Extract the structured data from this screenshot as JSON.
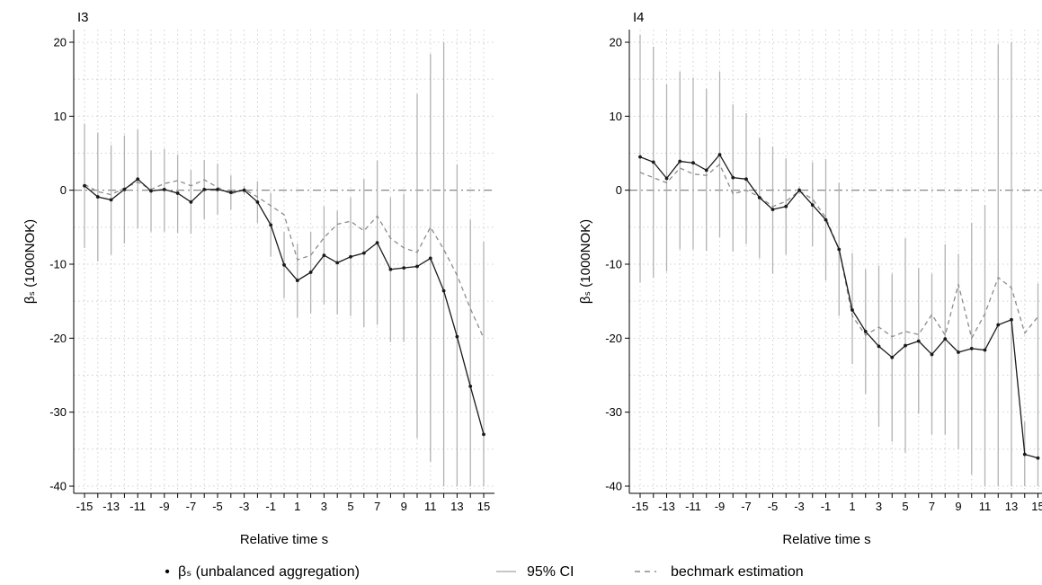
{
  "colors": {
    "point_line": "#1a1a1a",
    "ci": "#b3b3b3",
    "benchmark": "#8c8c8c",
    "grid": "#cfcfcf",
    "zero_line": "#7a7a7a",
    "axis": "#000000"
  },
  "legend": {
    "items": [
      {
        "marker": "•",
        "label": "βₛ (unbalanced aggregation)"
      },
      {
        "marker": "—",
        "label": "95% CI"
      },
      {
        "marker": "– –",
        "label": "bechmark estimation"
      }
    ]
  },
  "chart_data": [
    {
      "type": "line",
      "title": "I3",
      "xlabel": "Relative time s",
      "ylabel": "βₛ (1000NOK)",
      "xlim": [
        -15,
        15
      ],
      "ylim": [
        -40,
        20
      ],
      "xticks": [
        -15,
        -13,
        -11,
        -9,
        -7,
        -5,
        -3,
        -1,
        1,
        3,
        5,
        7,
        9,
        11,
        13,
        15
      ],
      "xtick_labels": [
        "-15",
        "-13",
        "-11",
        "-9",
        "-7",
        "-5",
        "-3",
        "-1",
        "1",
        "3",
        "5",
        "7",
        "9",
        "11",
        "13",
        "15"
      ],
      "yticks": [
        -40,
        -30,
        -20,
        -10,
        0,
        10,
        20
      ],
      "ytick_labels": [
        "-40",
        "-30",
        "-20",
        "-10",
        "0",
        "10",
        "20"
      ],
      "grid": true,
      "x": [
        -15,
        -14,
        -13,
        -12,
        -11,
        -10,
        -9,
        -8,
        -7,
        -6,
        -5,
        -4,
        -3,
        -2,
        -1,
        0,
        1,
        2,
        3,
        4,
        5,
        6,
        7,
        8,
        9,
        10,
        11,
        12,
        13,
        14,
        15
      ],
      "series": [
        {
          "name": "βₛ (unbalanced aggregation)",
          "values": [
            0.6,
            -0.9,
            -1.3,
            0.1,
            1.5,
            -0.1,
            0.1,
            -0.4,
            -1.6,
            0.1,
            0.1,
            -0.3,
            0.0,
            -1.6,
            -4.7,
            -10.1,
            -12.2,
            -11.1,
            -8.8,
            -9.8,
            -9.0,
            -8.5,
            -7.1,
            -10.7,
            -10.5,
            -10.3,
            -9.2,
            -13.6,
            -19.8,
            -26.5,
            -33.0
          ]
        },
        {
          "name": "95% CI",
          "lower": [
            -7.8,
            -9.6,
            -8.7,
            -7.2,
            -5.2,
            -5.6,
            -5.6,
            -5.8,
            -5.9,
            -3.9,
            -3.3,
            -2.6,
            -0.6,
            -4.4,
            -9.0,
            -14.6,
            -17.2,
            -16.6,
            -15.4,
            -16.8,
            -17.0,
            -18.5,
            -18.2,
            -20.5,
            -20.5,
            -33.5,
            -36.7,
            -40.0,
            -40.0,
            -40.0,
            -40.0
          ],
          "upper": [
            9.0,
            7.8,
            6.1,
            7.4,
            8.2,
            5.4,
            5.6,
            4.8,
            2.7,
            4.1,
            3.6,
            2.0,
            0.6,
            1.2,
            -0.4,
            -5.6,
            -7.2,
            -5.6,
            -2.2,
            -2.8,
            -1.0,
            1.5,
            4.0,
            -1.0,
            -0.5,
            13.0,
            18.4,
            20.0,
            3.5,
            -4.0,
            -7.0
          ]
        },
        {
          "name": "bechmark estimation",
          "values": [
            0.8,
            -0.2,
            -0.6,
            0.3,
            1.1,
            0.1,
            0.9,
            1.3,
            0.6,
            1.4,
            0.4,
            -0.5,
            0.1,
            -0.9,
            -2.1,
            -3.3,
            -9.4,
            -8.8,
            -6.4,
            -4.6,
            -4.2,
            -5.5,
            -3.5,
            -6.5,
            -7.8,
            -8.4,
            -5.0,
            -8.0,
            -11.5,
            -16.0,
            -20.0
          ]
        }
      ]
    },
    {
      "type": "line",
      "title": "I4",
      "xlabel": "Relative time s",
      "ylabel": "βₛ (1000NOK)",
      "xlim": [
        -15,
        15
      ],
      "ylim": [
        -40,
        20
      ],
      "xticks": [
        -15,
        -13,
        -11,
        -9,
        -7,
        -5,
        -3,
        -1,
        1,
        3,
        5,
        7,
        9,
        11,
        13,
        15
      ],
      "xtick_labels": [
        "-15",
        "-13",
        "-11",
        "-9",
        "-7",
        "-5",
        "-3",
        "-1",
        "1",
        "3",
        "5",
        "7",
        "9",
        "11",
        "13",
        "15"
      ],
      "yticks": [
        -40,
        -30,
        -20,
        -10,
        0,
        10,
        20
      ],
      "ytick_labels": [
        "-40",
        "-30",
        "-20",
        "-10",
        "0",
        "10",
        "20"
      ],
      "grid": true,
      "x": [
        -15,
        -14,
        -13,
        -12,
        -11,
        -10,
        -9,
        -8,
        -7,
        -6,
        -5,
        -4,
        -3,
        -2,
        -1,
        0,
        1,
        2,
        3,
        4,
        5,
        6,
        7,
        8,
        9,
        10,
        11,
        12,
        13,
        14,
        15
      ],
      "series": [
        {
          "name": "βₛ (unbalanced aggregation)",
          "values": [
            4.5,
            3.8,
            1.6,
            3.9,
            3.7,
            2.7,
            4.8,
            1.7,
            1.5,
            -1.0,
            -2.6,
            -2.2,
            0.0,
            -2.0,
            -4.0,
            -8.0,
            -16.2,
            -19.1,
            -21.1,
            -22.6,
            -21.0,
            -20.4,
            -22.2,
            -20.1,
            -21.9,
            -21.4,
            -21.6,
            -18.2,
            -17.5,
            -35.7,
            -36.2
          ]
        },
        {
          "name": "95% CI",
          "lower": [
            -12.5,
            -11.8,
            -11.0,
            -8.0,
            -8.0,
            -8.2,
            -6.4,
            -8.3,
            -7.3,
            -9.2,
            -11.3,
            -8.7,
            -0.5,
            -7.6,
            -12.2,
            -17.0,
            -23.5,
            -27.5,
            -32.0,
            -34.0,
            -35.5,
            -30.2,
            -33.0,
            -33.0,
            -35.0,
            -38.4,
            -40.0,
            -40.0,
            -40.0,
            -40.0,
            -40.0
          ],
          "upper": [
            21.0,
            19.4,
            14.3,
            16.0,
            15.2,
            13.7,
            16.0,
            11.6,
            10.4,
            7.1,
            5.9,
            4.3,
            0.5,
            3.8,
            4.2,
            1.0,
            -8.5,
            -10.7,
            -10.2,
            -11.3,
            -6.5,
            -10.5,
            -11.3,
            -7.3,
            -8.6,
            -4.4,
            -2.0,
            19.7,
            20.0,
            -31.3,
            -12.6
          ]
        },
        {
          "name": "bechmark estimation",
          "values": [
            2.4,
            1.7,
            1.0,
            3.0,
            2.2,
            2.0,
            3.5,
            -0.5,
            0.0,
            -0.9,
            -2.2,
            -1.5,
            -0.1,
            -1.2,
            -3.7,
            -8.0,
            -17.0,
            -19.6,
            -18.5,
            -19.8,
            -19.1,
            -19.5,
            -16.8,
            -19.6,
            -12.7,
            -20.0,
            -16.7,
            -11.8,
            -13.2,
            -19.3,
            -17.1
          ]
        }
      ]
    }
  ]
}
